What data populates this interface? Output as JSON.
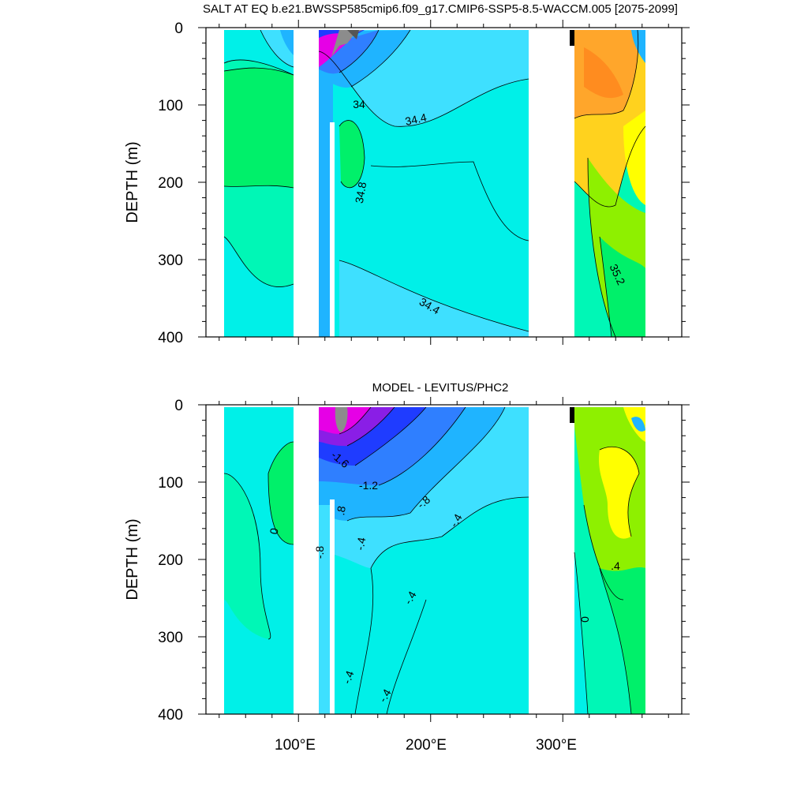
{
  "colors": {
    "magenta": "#e600e6",
    "purple": "#8a1ee6",
    "blue": "#1f3cff",
    "mid_blue": "#2f7fff",
    "sky": "#1fb4ff",
    "light_cyan": "#3ee0ff",
    "aqua": "#00f0e8",
    "sea_green": "#00f7b6",
    "green": "#00f06a",
    "yellow_green": "#8ef000",
    "yellow": "#ffff00",
    "gold": "#ffd21e",
    "orange": "#ffa62b",
    "dark_orange": "#ff8c1f",
    "gray": "#8c8c8c",
    "dark_gray": "#555555"
  },
  "chart_data": [
    {
      "type": "heatmap",
      "title": "SALT AT EQ b.e21.BWSSP585cmip6.f09_g17.CMIP6-SSP5-8.5-WACCM.005 [2075-2099]",
      "ylabel": "DEPTH (m)",
      "xlabel": "",
      "xlim": [
        30,
        390
      ],
      "ylim": [
        400,
        0
      ],
      "y_ticks": [
        "0",
        "100",
        "200",
        "300",
        "400"
      ],
      "x_ticks": [
        "100°E",
        "200°E",
        "300°E"
      ],
      "contour_labels": [
        "34",
        "34.4",
        "34.8",
        "34.4",
        "35.2"
      ],
      "land_gaps": [
        [
          98,
          118
        ],
        [
          280,
          315
        ]
      ]
    },
    {
      "type": "heatmap",
      "title": "MODEL - LEVITUS/PHC2",
      "ylabel": "DEPTH (m)",
      "xlabel": "",
      "xlim": [
        30,
        390
      ],
      "ylim": [
        400,
        0
      ],
      "y_ticks": [
        "0",
        "100",
        "200",
        "300",
        "400"
      ],
      "x_ticks": [
        "100°E",
        "200°E",
        "300°E"
      ],
      "contour_labels": [
        "0",
        "-1.6",
        "-1.2",
        ".8",
        "-.8",
        "-.4",
        ".4",
        "-.8",
        "-.4",
        "-.4",
        "-.4",
        "-.4",
        ".4",
        "0"
      ],
      "land_gaps": [
        [
          98,
          118
        ],
        [
          280,
          315
        ]
      ]
    }
  ]
}
